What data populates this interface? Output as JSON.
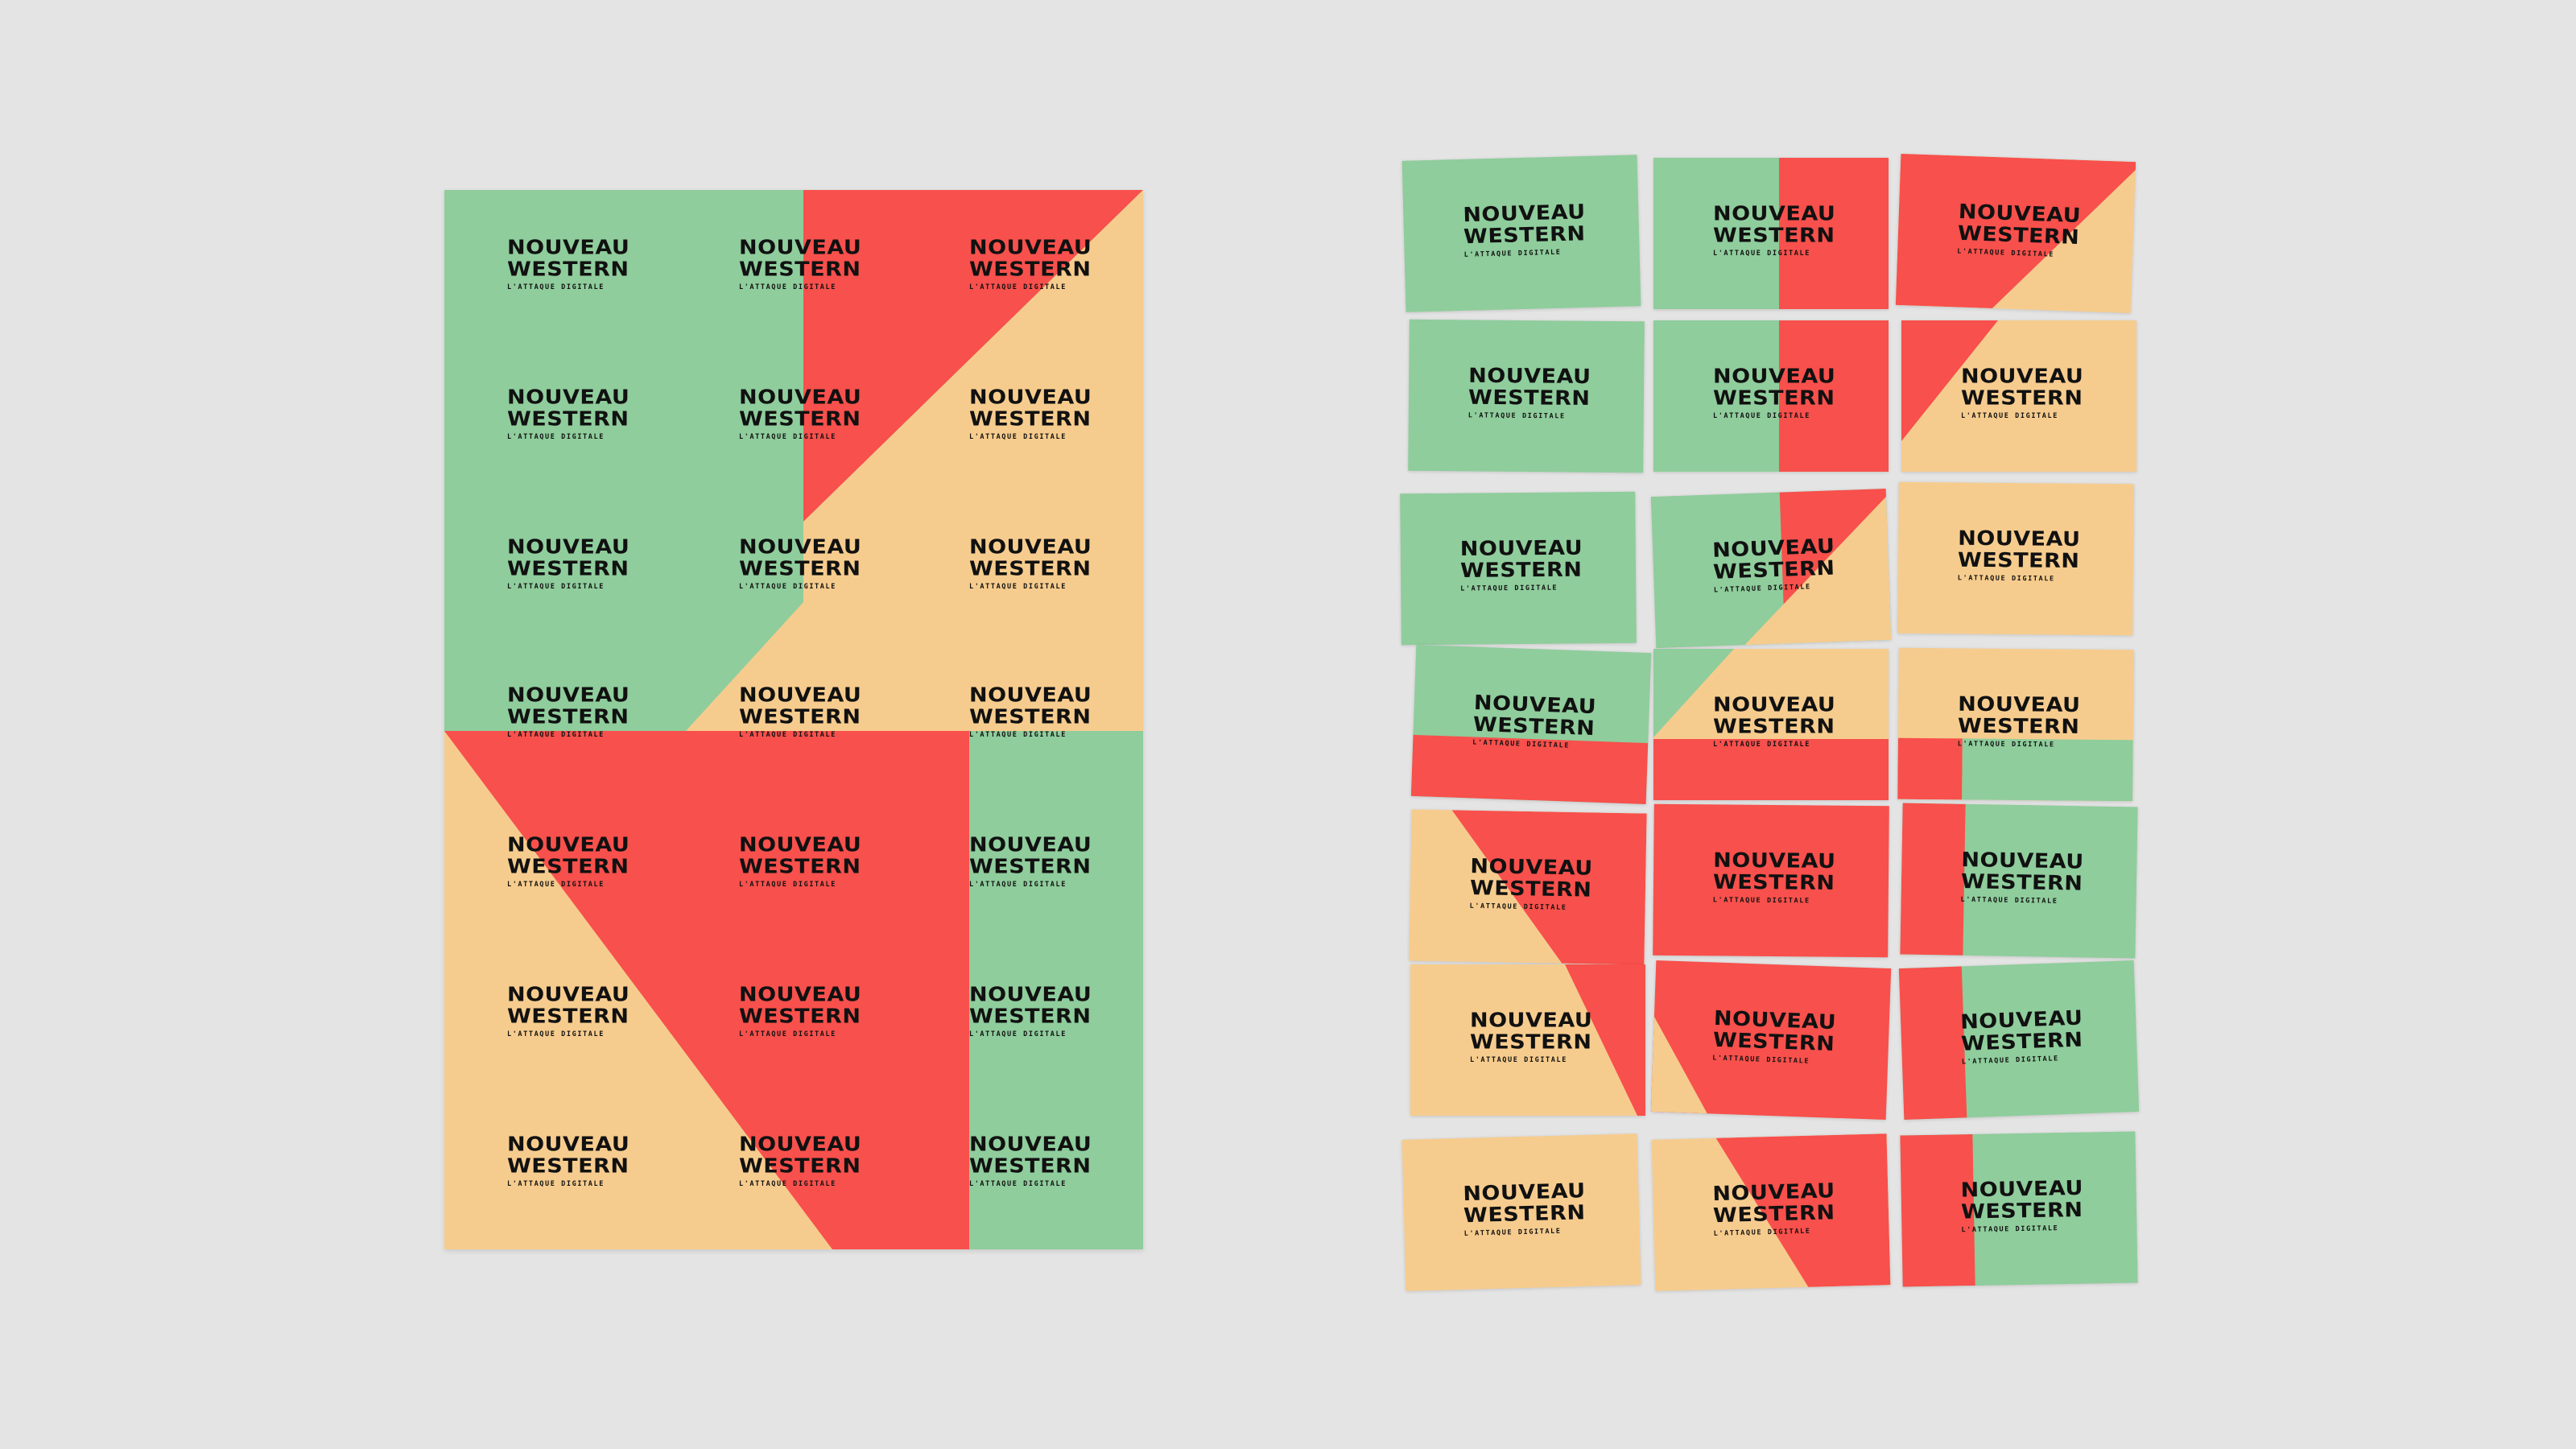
{
  "brand": {
    "line1": "NOUVEAU",
    "line2": "WESTERN",
    "tagline": "L'ATTAQUE DIGITALE"
  },
  "colors": {
    "background": "#e4e4e4",
    "green": "#8fcd9c",
    "red": "#f8504c",
    "peach": "#f6cc8e",
    "ink": "#111111"
  },
  "poster": {
    "rows": 7,
    "cols": 3
  },
  "cards": {
    "rows": 7,
    "cols": 3
  }
}
